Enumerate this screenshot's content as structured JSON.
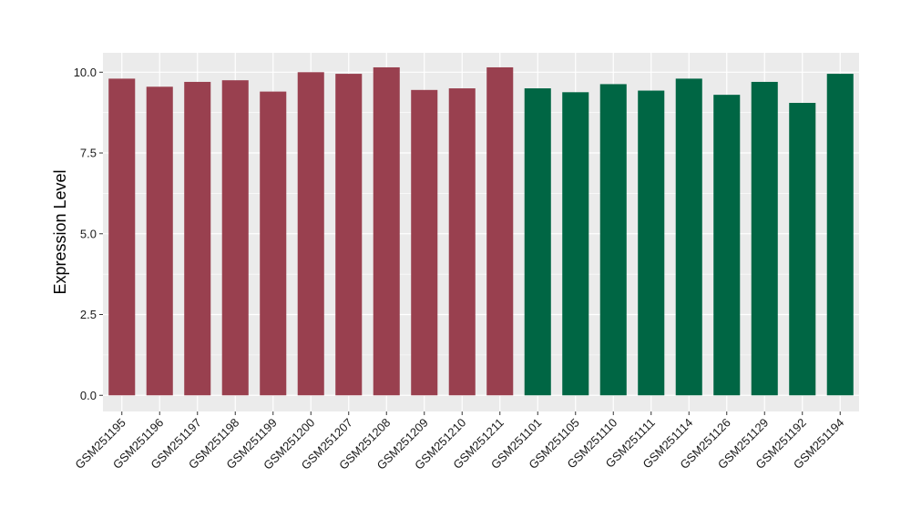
{
  "chart_data": {
    "type": "bar",
    "title": "",
    "xlabel": "",
    "ylabel": "Expression Level",
    "ylim": [
      -0.5,
      10.6
    ],
    "yticks": [
      0.0,
      2.5,
      5.0,
      7.5,
      10.0
    ],
    "ytick_labels": [
      "0.0",
      "2.5",
      "5.0",
      "7.5",
      "10.0"
    ],
    "grid": true,
    "legend": "none",
    "background_color": "#ebebeb",
    "grid_color": "#ffffff",
    "categories": [
      "GSM251195",
      "GSM251196",
      "GSM251197",
      "GSM251198",
      "GSM251199",
      "GSM251200",
      "GSM251207",
      "GSM251208",
      "GSM251209",
      "GSM251210",
      "GSM251211",
      "GSM251101",
      "GSM251105",
      "GSM251110",
      "GSM251111",
      "GSM251114",
      "GSM251126",
      "GSM251129",
      "GSM251192",
      "GSM251194"
    ],
    "values": [
      9.8,
      9.55,
      9.7,
      9.75,
      9.4,
      10.0,
      9.95,
      10.15,
      9.45,
      9.5,
      10.15,
      9.5,
      9.38,
      9.63,
      9.43,
      9.8,
      9.3,
      9.7,
      9.05,
      9.95
    ],
    "group_colors": [
      "#99404f",
      "#99404f",
      "#99404f",
      "#99404f",
      "#99404f",
      "#99404f",
      "#99404f",
      "#99404f",
      "#99404f",
      "#99404f",
      "#99404f",
      "#006644",
      "#006644",
      "#006644",
      "#006644",
      "#006644",
      "#006644",
      "#006644",
      "#006644",
      "#006644"
    ]
  }
}
